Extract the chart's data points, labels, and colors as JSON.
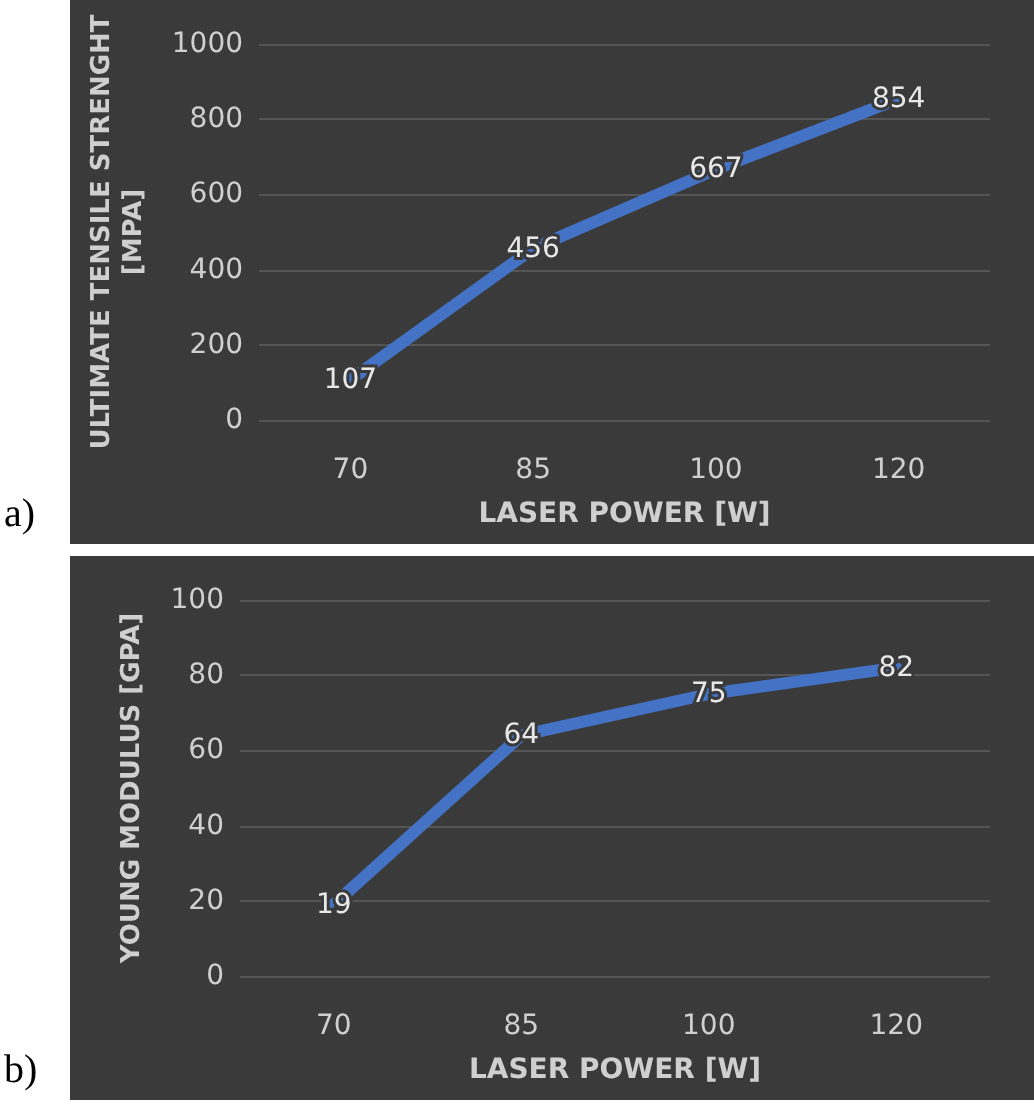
{
  "chart_data": [
    {
      "type": "line",
      "categories": [
        "70",
        "85",
        "100",
        "120"
      ],
      "values": [
        107,
        456,
        667,
        854
      ],
      "color": "#4472c4",
      "xlabel": "LASER POWER [W]",
      "ylabel": "ULTIMATE TENSILE STRENGHT [MPA]",
      "ylim": [
        0,
        1000
      ],
      "yticks": [
        0,
        200,
        400,
        600,
        800,
        1000
      ],
      "grid": "y",
      "data_labels": true,
      "marker": "none",
      "annotations": [
        "a)"
      ]
    },
    {
      "type": "line",
      "categories": [
        "70",
        "85",
        "100",
        "120"
      ],
      "values": [
        19,
        64,
        75,
        82
      ],
      "color": "#4472c4",
      "xlabel": "LASER POWER [W]",
      "ylabel": "YOUNG MODULUS [GPA]",
      "ylim": [
        0,
        100
      ],
      "yticks": [
        0,
        20,
        40,
        60,
        80,
        100
      ],
      "grid": "y",
      "data_labels": true,
      "marker": "none",
      "annotations": [
        "b)"
      ]
    }
  ]
}
